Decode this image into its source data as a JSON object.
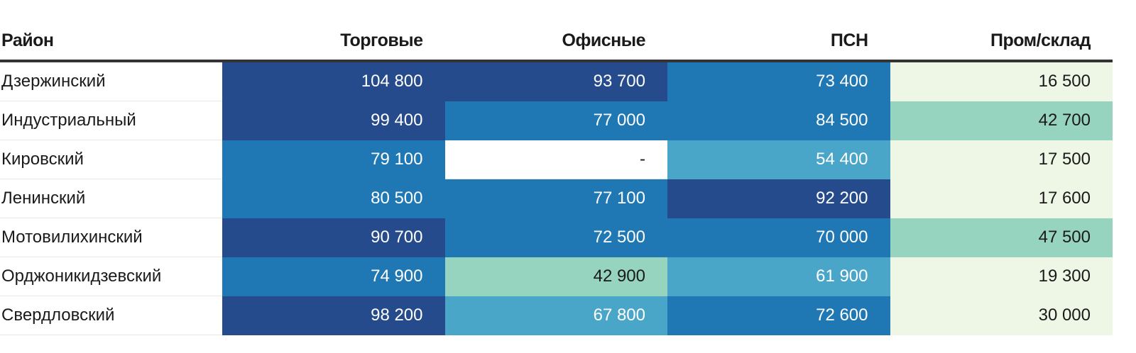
{
  "chart_data": {
    "type": "table",
    "columns": [
      "Район",
      "Торговые",
      "Офисные",
      "ПСН",
      "Пром/склад"
    ],
    "rows": [
      {
        "name": "Дзержинский",
        "values": [
          "104 800",
          "93 700",
          "73 400",
          "16 500"
        ],
        "colors": [
          "#254b8c",
          "#254b8c",
          "#1f78b4",
          "#eef7e6"
        ]
      },
      {
        "name": "Индустриальный",
        "values": [
          "99 400",
          "77 000",
          "84 500",
          "42 700"
        ],
        "colors": [
          "#254b8c",
          "#1f78b4",
          "#1f78b4",
          "#97d4bf"
        ]
      },
      {
        "name": "Кировский",
        "values": [
          "79 100",
          "-",
          "54 400",
          "17 500"
        ],
        "colors": [
          "#1f78b4",
          "#ffffff",
          "#4aa6c9",
          "#eef7e6"
        ]
      },
      {
        "name": "Ленинский",
        "values": [
          "80 500",
          "77 100",
          "92 200",
          "17 600"
        ],
        "colors": [
          "#1f78b4",
          "#1f78b4",
          "#254b8c",
          "#eef7e6"
        ]
      },
      {
        "name": "Мотовилихинский",
        "values": [
          "90 700",
          "72 500",
          "70 000",
          "47 500"
        ],
        "colors": [
          "#254b8c",
          "#1f78b4",
          "#1f78b4",
          "#97d4bf"
        ]
      },
      {
        "name": "Орджоникидзевский",
        "values": [
          "74 900",
          "42 900",
          "61 900",
          "19 300"
        ],
        "colors": [
          "#1f78b4",
          "#97d4bf",
          "#4aa6c9",
          "#eef7e6"
        ]
      },
      {
        "name": "Свердловский",
        "values": [
          "98 200",
          "67 800",
          "72 600",
          "30 000"
        ],
        "colors": [
          "#254b8c",
          "#4aa6c9",
          "#1f78b4",
          "#eef7e6"
        ]
      }
    ],
    "light_text_colors": [
      "#254b8c",
      "#1f78b4",
      "#4aa6c9"
    ]
  }
}
